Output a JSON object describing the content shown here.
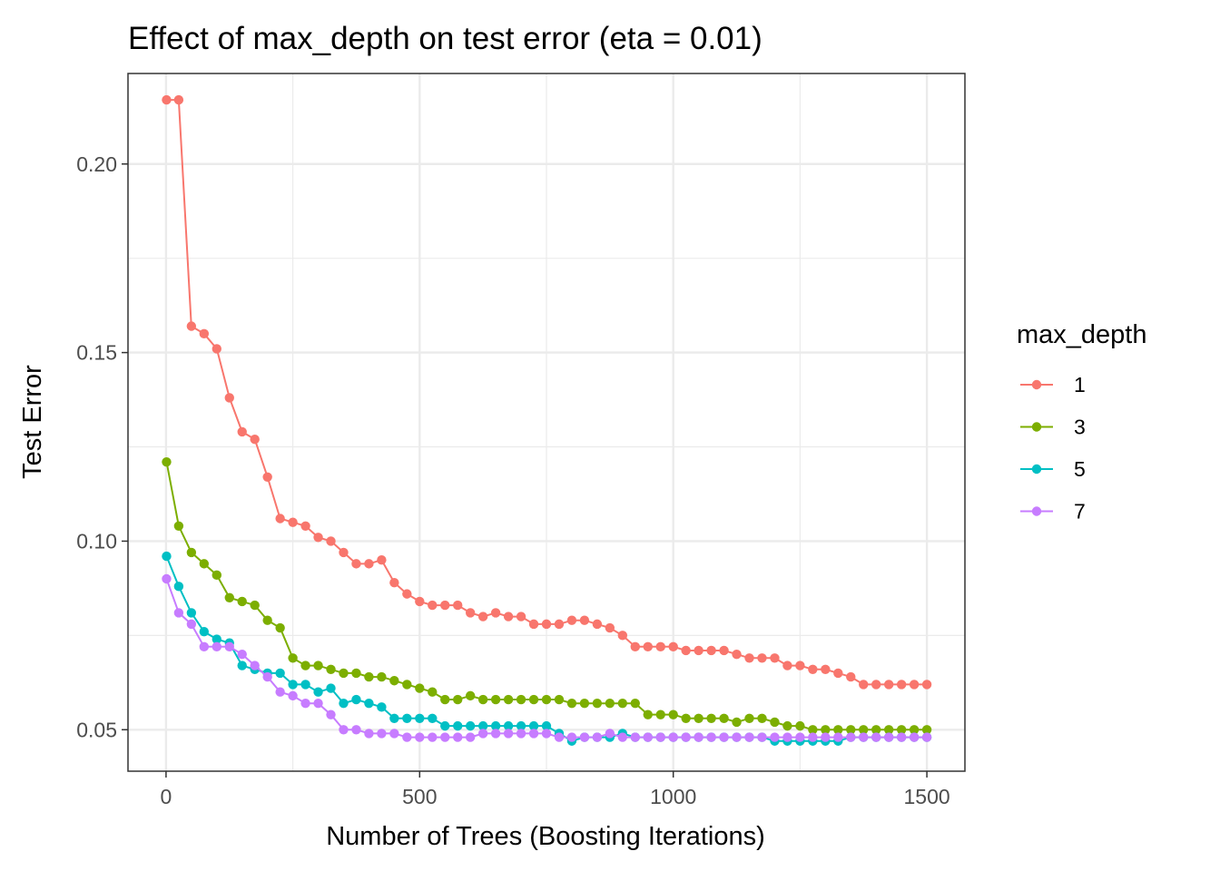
{
  "chart_data": {
    "type": "line",
    "title": "Effect of max_depth on test error (eta = 0.01)",
    "xlabel": "Number of Trees (Boosting Iterations)",
    "ylabel": "Test Error",
    "xlim": [
      -75,
      1575
    ],
    "ylim": [
      0.039,
      0.224
    ],
    "xticks": [
      0,
      500,
      1000,
      1500
    ],
    "xtick_labels": [
      "0",
      "500",
      "1000",
      "1500"
    ],
    "yticks": [
      0.05,
      0.1,
      0.15,
      0.2
    ],
    "ytick_labels": [
      "0.05",
      "0.10",
      "0.15",
      "0.20"
    ],
    "grid": true,
    "markers": true,
    "legend_title": "max_depth",
    "legend_position": "right",
    "x": [
      1,
      25,
      50,
      75,
      100,
      125,
      150,
      175,
      200,
      225,
      250,
      275,
      300,
      325,
      350,
      375,
      400,
      425,
      450,
      475,
      500,
      525,
      550,
      575,
      600,
      625,
      650,
      675,
      700,
      725,
      750,
      775,
      800,
      825,
      850,
      875,
      900,
      925,
      950,
      975,
      1000,
      1025,
      1050,
      1075,
      1100,
      1125,
      1150,
      1175,
      1200,
      1225,
      1250,
      1275,
      1300,
      1325,
      1350,
      1375,
      1400,
      1425,
      1450,
      1475,
      1500
    ],
    "series": [
      {
        "name": "1",
        "color": "#F8766D",
        "values": [
          0.217,
          0.217,
          0.157,
          0.155,
          0.151,
          0.138,
          0.129,
          0.127,
          0.117,
          0.106,
          0.105,
          0.104,
          0.101,
          0.1,
          0.097,
          0.094,
          0.094,
          0.095,
          0.089,
          0.086,
          0.084,
          0.083,
          0.083,
          0.083,
          0.081,
          0.08,
          0.081,
          0.08,
          0.08,
          0.078,
          0.078,
          0.078,
          0.079,
          0.079,
          0.078,
          0.077,
          0.075,
          0.072,
          0.072,
          0.072,
          0.072,
          0.071,
          0.071,
          0.071,
          0.071,
          0.07,
          0.069,
          0.069,
          0.069,
          0.067,
          0.067,
          0.066,
          0.066,
          0.065,
          0.064,
          0.062,
          0.062,
          0.062,
          0.062,
          0.062,
          0.062
        ]
      },
      {
        "name": "3",
        "color": "#7CAE00",
        "values": [
          0.121,
          0.104,
          0.097,
          0.094,
          0.091,
          0.085,
          0.084,
          0.083,
          0.079,
          0.077,
          0.069,
          0.067,
          0.067,
          0.066,
          0.065,
          0.065,
          0.064,
          0.064,
          0.063,
          0.062,
          0.061,
          0.06,
          0.058,
          0.058,
          0.059,
          0.058,
          0.058,
          0.058,
          0.058,
          0.058,
          0.058,
          0.058,
          0.057,
          0.057,
          0.057,
          0.057,
          0.057,
          0.057,
          0.054,
          0.054,
          0.054,
          0.053,
          0.053,
          0.053,
          0.053,
          0.052,
          0.053,
          0.053,
          0.052,
          0.051,
          0.051,
          0.05,
          0.05,
          0.05,
          0.05,
          0.05,
          0.05,
          0.05,
          0.05,
          0.05,
          0.05
        ]
      },
      {
        "name": "5",
        "color": "#00BFC4",
        "values": [
          0.096,
          0.088,
          0.081,
          0.076,
          0.074,
          0.073,
          0.067,
          0.066,
          0.065,
          0.065,
          0.062,
          0.062,
          0.06,
          0.061,
          0.057,
          0.058,
          0.057,
          0.056,
          0.053,
          0.053,
          0.053,
          0.053,
          0.051,
          0.051,
          0.051,
          0.051,
          0.051,
          0.051,
          0.051,
          0.051,
          0.051,
          0.049,
          0.047,
          0.048,
          0.048,
          0.048,
          0.049,
          0.048,
          0.048,
          0.048,
          0.048,
          0.048,
          0.048,
          0.048,
          0.048,
          0.048,
          0.048,
          0.048,
          0.047,
          0.047,
          0.047,
          0.047,
          0.047,
          0.047,
          0.048,
          0.048,
          0.048,
          0.048,
          0.048,
          0.048,
          0.048
        ]
      },
      {
        "name": "7",
        "color": "#C77CFF",
        "values": [
          0.09,
          0.081,
          0.078,
          0.072,
          0.072,
          0.072,
          0.07,
          0.067,
          0.064,
          0.06,
          0.059,
          0.057,
          0.057,
          0.054,
          0.05,
          0.05,
          0.049,
          0.049,
          0.049,
          0.048,
          0.048,
          0.048,
          0.048,
          0.048,
          0.048,
          0.049,
          0.049,
          0.049,
          0.049,
          0.049,
          0.049,
          0.048,
          0.048,
          0.048,
          0.048,
          0.049,
          0.048,
          0.048,
          0.048,
          0.048,
          0.048,
          0.048,
          0.048,
          0.048,
          0.048,
          0.048,
          0.048,
          0.048,
          0.048,
          0.048,
          0.048,
          0.048,
          0.048,
          0.048,
          0.048,
          0.048,
          0.048,
          0.048,
          0.048,
          0.048,
          0.048
        ]
      }
    ]
  }
}
